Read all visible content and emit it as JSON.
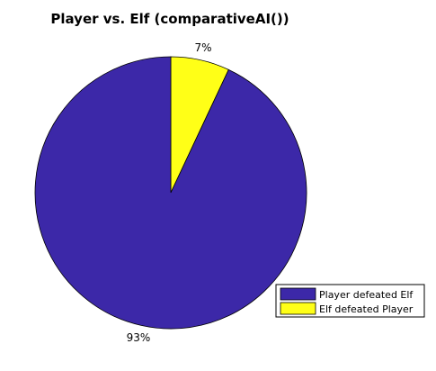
{
  "chart_data": {
    "type": "pie",
    "title": "Player vs. Elf (comparativeAI())",
    "slices": [
      {
        "name": "Player defeated Elf",
        "value": 93,
        "label": "93%",
        "color": "#3c28a8"
      },
      {
        "name": "Elf defeated Player",
        "value": 7,
        "label": "7%",
        "color": "#ffff17"
      }
    ],
    "legend": {
      "position": "bottom-right",
      "entries": [
        "Player defeated Elf",
        "Elf defeated Player"
      ]
    }
  }
}
